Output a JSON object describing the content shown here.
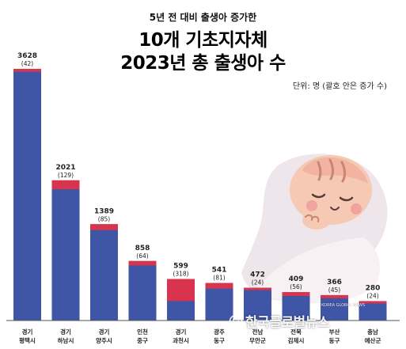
{
  "header": {
    "subtitle": "5년 전 대비 출생아 증가한",
    "title_line1": "10개 기초지자체",
    "title_line2": "2023년 총 출생아 수",
    "unit_note": "단위: 명 (괄호 안은 증가 수)"
  },
  "watermark": {
    "text": "한국글로벌뉴스",
    "small": "KOREA GLOBAL NEWS"
  },
  "colors": {
    "base": "#3f55a6",
    "increase": "#d9344e",
    "axis": "#555555",
    "label": "#222222"
  },
  "chart_data": {
    "type": "bar",
    "stacked": true,
    "title": "2023년 총 출생아 수",
    "categories": [
      [
        "경기",
        "평택시"
      ],
      [
        "경기",
        "하남시"
      ],
      [
        "경기",
        "양주시"
      ],
      [
        "인천",
        "중구"
      ],
      [
        "경기",
        "과천시"
      ],
      [
        "광주",
        "동구"
      ],
      [
        "전남",
        "무안군"
      ],
      [
        "전북",
        "김제시"
      ],
      [
        "부산",
        "동구"
      ],
      [
        "충남",
        "예산군"
      ]
    ],
    "values": [
      3628,
      2021,
      1389,
      858,
      599,
      541,
      472,
      409,
      366,
      280
    ],
    "increases": [
      42,
      129,
      85,
      64,
      318,
      81,
      24,
      56,
      45,
      24
    ],
    "value_labels": [
      "3628",
      "2021",
      "1389",
      "858",
      "599",
      "541",
      "472",
      "409",
      "366",
      "280"
    ],
    "increase_labels": [
      "(42)",
      "(129)",
      "(85)",
      "(64)",
      "(318)",
      "(81)",
      "(24)",
      "(56)",
      "(45)",
      "(24)"
    ],
    "ylim": [
      0,
      3628
    ]
  }
}
